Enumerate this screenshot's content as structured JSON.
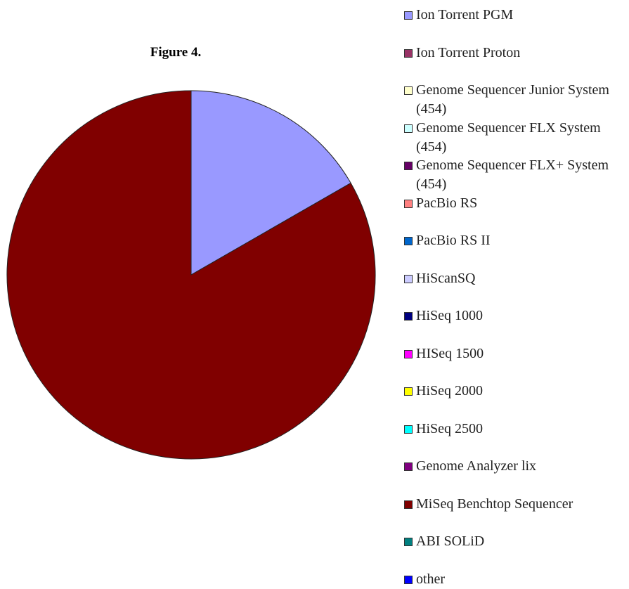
{
  "chart_data": {
    "type": "pie",
    "title": "Figure 4.",
    "categories": [
      "Ion Torrent PGM",
      "Ion Torrent Proton",
      "Genome Sequencer Junior System (454)",
      "Genome Sequencer FLX System (454)",
      "Genome Sequencer FLX+ System (454)",
      "PacBio RS",
      "PacBio RS II",
      "HiScanSQ",
      "HiSeq 1000",
      "HISeq 1500",
      "HiSeq 2000",
      "HiSeq 2500",
      "Genome Analyzer lix",
      "MiSeq Benchtop Sequencer",
      "ABI SOLiD",
      "other"
    ],
    "values": [
      16.7,
      0,
      0,
      0,
      0,
      0,
      0,
      0,
      0,
      0,
      0,
      0,
      0,
      83.3,
      0,
      0
    ],
    "colors": [
      "#9999ff",
      "#993366",
      "#ffffcc",
      "#ccffff",
      "#660066",
      "#ff8080",
      "#0066cc",
      "#ccccff",
      "#000080",
      "#ff00ff",
      "#ffff00",
      "#00ffff",
      "#800080",
      "#800000",
      "#008080",
      "#0000ff"
    ]
  }
}
